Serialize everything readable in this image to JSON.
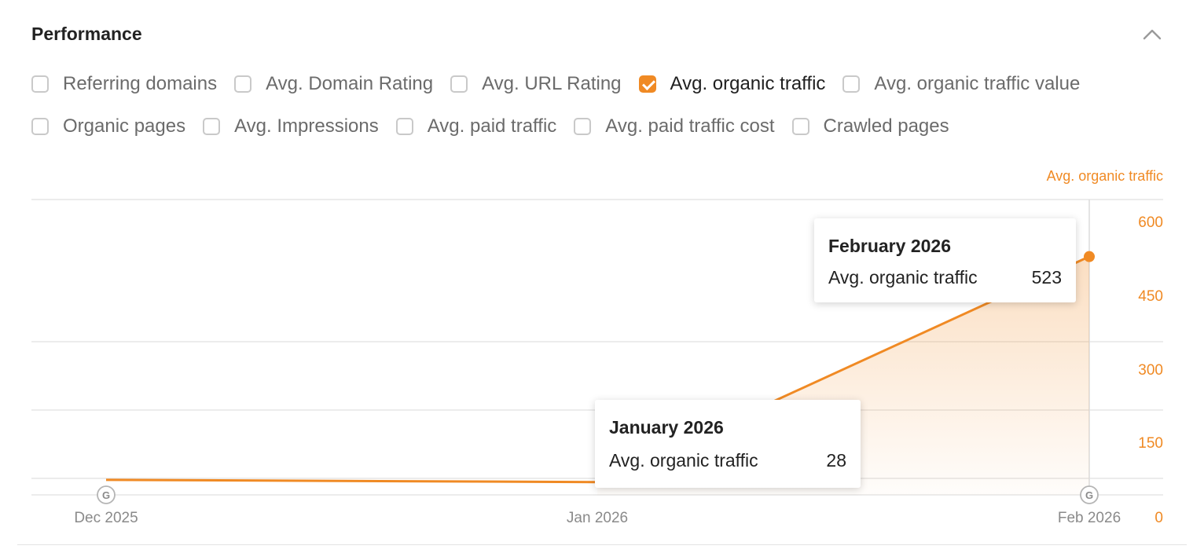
{
  "panel": {
    "title": "Performance",
    "collapse_icon": "chevron-up-icon"
  },
  "filters": [
    [
      {
        "label": "Referring domains",
        "checked": false
      },
      {
        "label": "Avg. Domain Rating",
        "checked": false
      },
      {
        "label": "Avg. URL Rating",
        "checked": false
      },
      {
        "label": "Avg. organic traffic",
        "checked": true
      },
      {
        "label": "Avg. organic traffic value",
        "checked": false
      }
    ],
    [
      {
        "label": "Organic pages",
        "checked": false
      },
      {
        "label": "Avg. Impressions",
        "checked": false
      },
      {
        "label": "Avg. paid traffic",
        "checked": false
      },
      {
        "label": "Avg. paid traffic cost",
        "checked": false
      },
      {
        "label": "Crawled pages",
        "checked": false
      }
    ]
  ],
  "colors": {
    "accent": "#f08a24",
    "grid": "#e6e6e6",
    "axis_text": "#8a8a8a"
  },
  "chart_data": {
    "type": "area",
    "ylabel": "Avg. organic traffic",
    "x": [
      "Dec 2025",
      "Jan 2026",
      "Feb 2026"
    ],
    "x_ticks": [
      "Dec 2025",
      "Jan 2026",
      "Feb 2026"
    ],
    "y_ticks": [
      0,
      150,
      300,
      450,
      600
    ],
    "ylim": [
      0,
      600
    ],
    "series": [
      {
        "name": "Avg. organic traffic",
        "values": [
          33,
          28,
          523
        ]
      }
    ],
    "annotations": [
      {
        "x": "Dec 2025",
        "icon": "google-update-icon"
      },
      {
        "x": "Feb 2026",
        "icon": "google-update-icon"
      }
    ],
    "grid": true
  },
  "tooltips": [
    {
      "title": "February 2026",
      "label": "Avg. organic traffic",
      "value": "523"
    },
    {
      "title": "January 2026",
      "label": "Avg. organic traffic",
      "value": "28"
    }
  ]
}
